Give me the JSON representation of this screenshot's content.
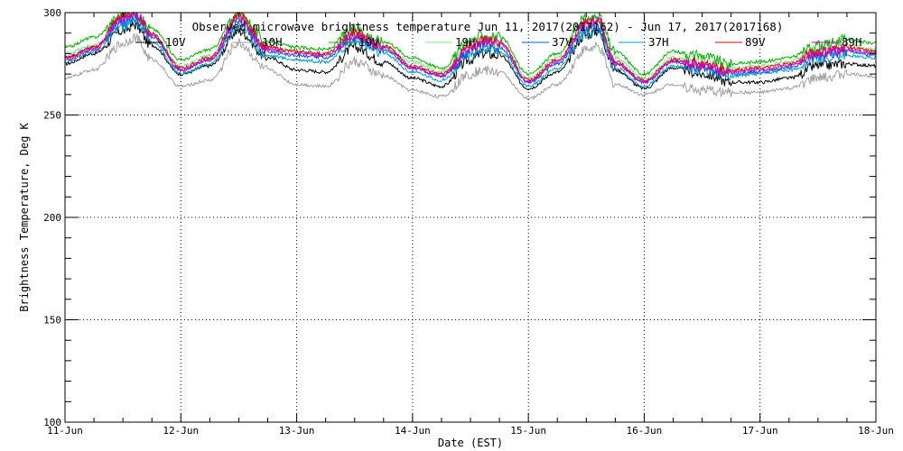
{
  "chart_data": {
    "type": "line",
    "title": "Observed microwave brightness temperature Jun 11, 2017(2017162) - Jun 17, 2017(2017168)",
    "xlabel": "Date (EST)",
    "ylabel": "Brightness Temperature, Deg K",
    "xlim": [
      0,
      7
    ],
    "ylim": [
      100,
      300
    ],
    "grid": true,
    "legend_position": "top",
    "x_ticks": [
      {
        "value": 0,
        "label": "11-Jun"
      },
      {
        "value": 1,
        "label": "12-Jun"
      },
      {
        "value": 2,
        "label": "13-Jun"
      },
      {
        "value": 3,
        "label": "14-Jun"
      },
      {
        "value": 4,
        "label": "15-Jun"
      },
      {
        "value": 5,
        "label": "16-Jun"
      },
      {
        "value": 6,
        "label": "17-Jun"
      },
      {
        "value": 7,
        "label": "18-Jun"
      }
    ],
    "y_ticks": [
      {
        "value": 100,
        "label": "100"
      },
      {
        "value": 150,
        "label": "150"
      },
      {
        "value": 200,
        "label": "200"
      },
      {
        "value": 250,
        "label": "250"
      },
      {
        "value": 300,
        "label": "300"
      }
    ],
    "x": [
      0,
      0.25,
      0.5,
      0.6,
      0.75,
      1.0,
      1.25,
      1.5,
      1.75,
      2.0,
      2.25,
      2.5,
      2.75,
      3.0,
      3.25,
      3.5,
      3.6,
      3.75,
      4.0,
      4.25,
      4.5,
      4.6,
      4.75,
      5.0,
      5.25,
      5.5,
      5.75,
      6.0,
      6.25,
      6.5,
      6.75,
      7.0
    ],
    "series": [
      {
        "name": "10V",
        "color": "#000000",
        "values": [
          275,
          280,
          291,
          294,
          284,
          270,
          274,
          291,
          278,
          272,
          271,
          283,
          276,
          268,
          264,
          277,
          280,
          279,
          263,
          271,
          289,
          291,
          272,
          263,
          273,
          270,
          266,
          266,
          268,
          274,
          275,
          274
        ]
      },
      {
        "name": "10H",
        "color": "#a0a0a0",
        "values": [
          268,
          272,
          285,
          288,
          277,
          264,
          267,
          285,
          272,
          265,
          264,
          276,
          269,
          262,
          259,
          270,
          272,
          271,
          258,
          265,
          282,
          283,
          265,
          260,
          265,
          262,
          261,
          261,
          263,
          268,
          270,
          269
        ]
      },
      {
        "name": "19V",
        "color": "#00b400",
        "values": [
          283,
          288,
          299,
          300,
          292,
          277,
          282,
          299,
          286,
          283,
          282,
          292,
          286,
          278,
          273,
          286,
          289,
          288,
          270,
          280,
          297,
          298,
          281,
          270,
          281,
          279,
          275,
          276,
          278,
          284,
          287,
          285
        ]
      },
      {
        "name": "19H",
        "color": "#80e080",
        "values": [
          280,
          284,
          296,
          299,
          289,
          274,
          279,
          296,
          283,
          281,
          279,
          289,
          283,
          276,
          271,
          283,
          286,
          285,
          268,
          278,
          294,
          295,
          278,
          268,
          278,
          276,
          273,
          274,
          276,
          282,
          284,
          282
        ]
      },
      {
        "name": "37V",
        "color": "#0050ff",
        "values": [
          278,
          283,
          295,
          298,
          288,
          272,
          277,
          295,
          281,
          279,
          278,
          288,
          282,
          273,
          269,
          281,
          284,
          283,
          266,
          275,
          292,
          293,
          275,
          266,
          276,
          273,
          270,
          271,
          273,
          279,
          281,
          279
        ]
      },
      {
        "name": "37H",
        "color": "#00a0c8",
        "values": [
          276,
          281,
          293,
          296,
          286,
          270,
          275,
          293,
          279,
          277,
          276,
          286,
          280,
          271,
          267,
          279,
          282,
          281,
          264,
          273,
          290,
          291,
          273,
          264,
          274,
          272,
          269,
          270,
          272,
          277,
          279,
          278
        ]
      },
      {
        "name": "89V",
        "color": "#e00000",
        "values": [
          278,
          283,
          298,
          300,
          290,
          273,
          278,
          298,
          283,
          281,
          280,
          290,
          284,
          274,
          270,
          283,
          287,
          286,
          267,
          277,
          295,
          297,
          276,
          267,
          277,
          275,
          272,
          273,
          275,
          281,
          283,
          281
        ]
      },
      {
        "name": "89H",
        "color": "#d000d0",
        "values": [
          277,
          282,
          297,
          300,
          289,
          272,
          277,
          297,
          282,
          280,
          279,
          289,
          283,
          273,
          269,
          282,
          286,
          285,
          266,
          276,
          294,
          296,
          275,
          266,
          276,
          274,
          271,
          272,
          274,
          280,
          282,
          280
        ]
      }
    ]
  }
}
